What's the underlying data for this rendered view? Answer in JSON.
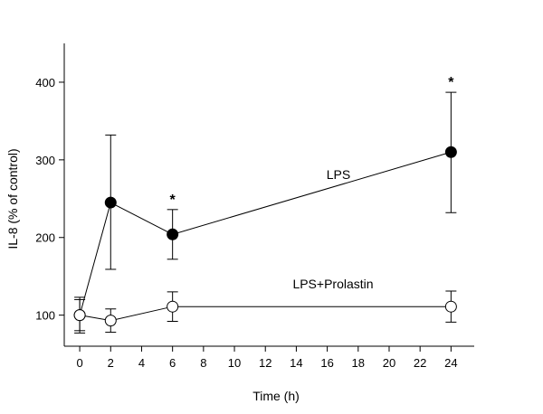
{
  "chart_data": {
    "type": "line",
    "title": "",
    "xlabel": "Time (h)",
    "ylabel": "IL-8 (% of control)",
    "xlim": [
      -1,
      25.5
    ],
    "ylim": [
      60,
      450
    ],
    "xticks": [
      0,
      2,
      4,
      6,
      8,
      10,
      12,
      14,
      16,
      18,
      20,
      22,
      24
    ],
    "yticks": [
      100,
      200,
      300,
      400
    ],
    "grid": false,
    "legend": "none",
    "series": [
      {
        "name": "LPS",
        "marker": "filled-circle",
        "color": "#000000",
        "points": [
          {
            "x": 0,
            "y": 100,
            "err_low": 80,
            "err_high": 120
          },
          {
            "x": 2,
            "y": 245,
            "err_low": 159,
            "err_high": 332
          },
          {
            "x": 6,
            "y": 204,
            "err_low": 172,
            "err_high": 236
          },
          {
            "x": 24,
            "y": 310,
            "err_low": 232,
            "err_high": 387
          }
        ]
      },
      {
        "name": "LPS+Prolastin",
        "marker": "open-circle",
        "color": "#000000",
        "points": [
          {
            "x": 0,
            "y": 100,
            "err_low": 77,
            "err_high": 123
          },
          {
            "x": 2,
            "y": 93,
            "err_low": 78,
            "err_high": 108
          },
          {
            "x": 6,
            "y": 111,
            "err_low": 92,
            "err_high": 130
          },
          {
            "x": 24,
            "y": 111,
            "err_low": 91,
            "err_high": 131
          }
        ]
      }
    ],
    "annotations": [
      {
        "text": "*",
        "x": 6,
        "y": 236
      },
      {
        "text": "*",
        "x": 24,
        "y": 387
      }
    ]
  }
}
